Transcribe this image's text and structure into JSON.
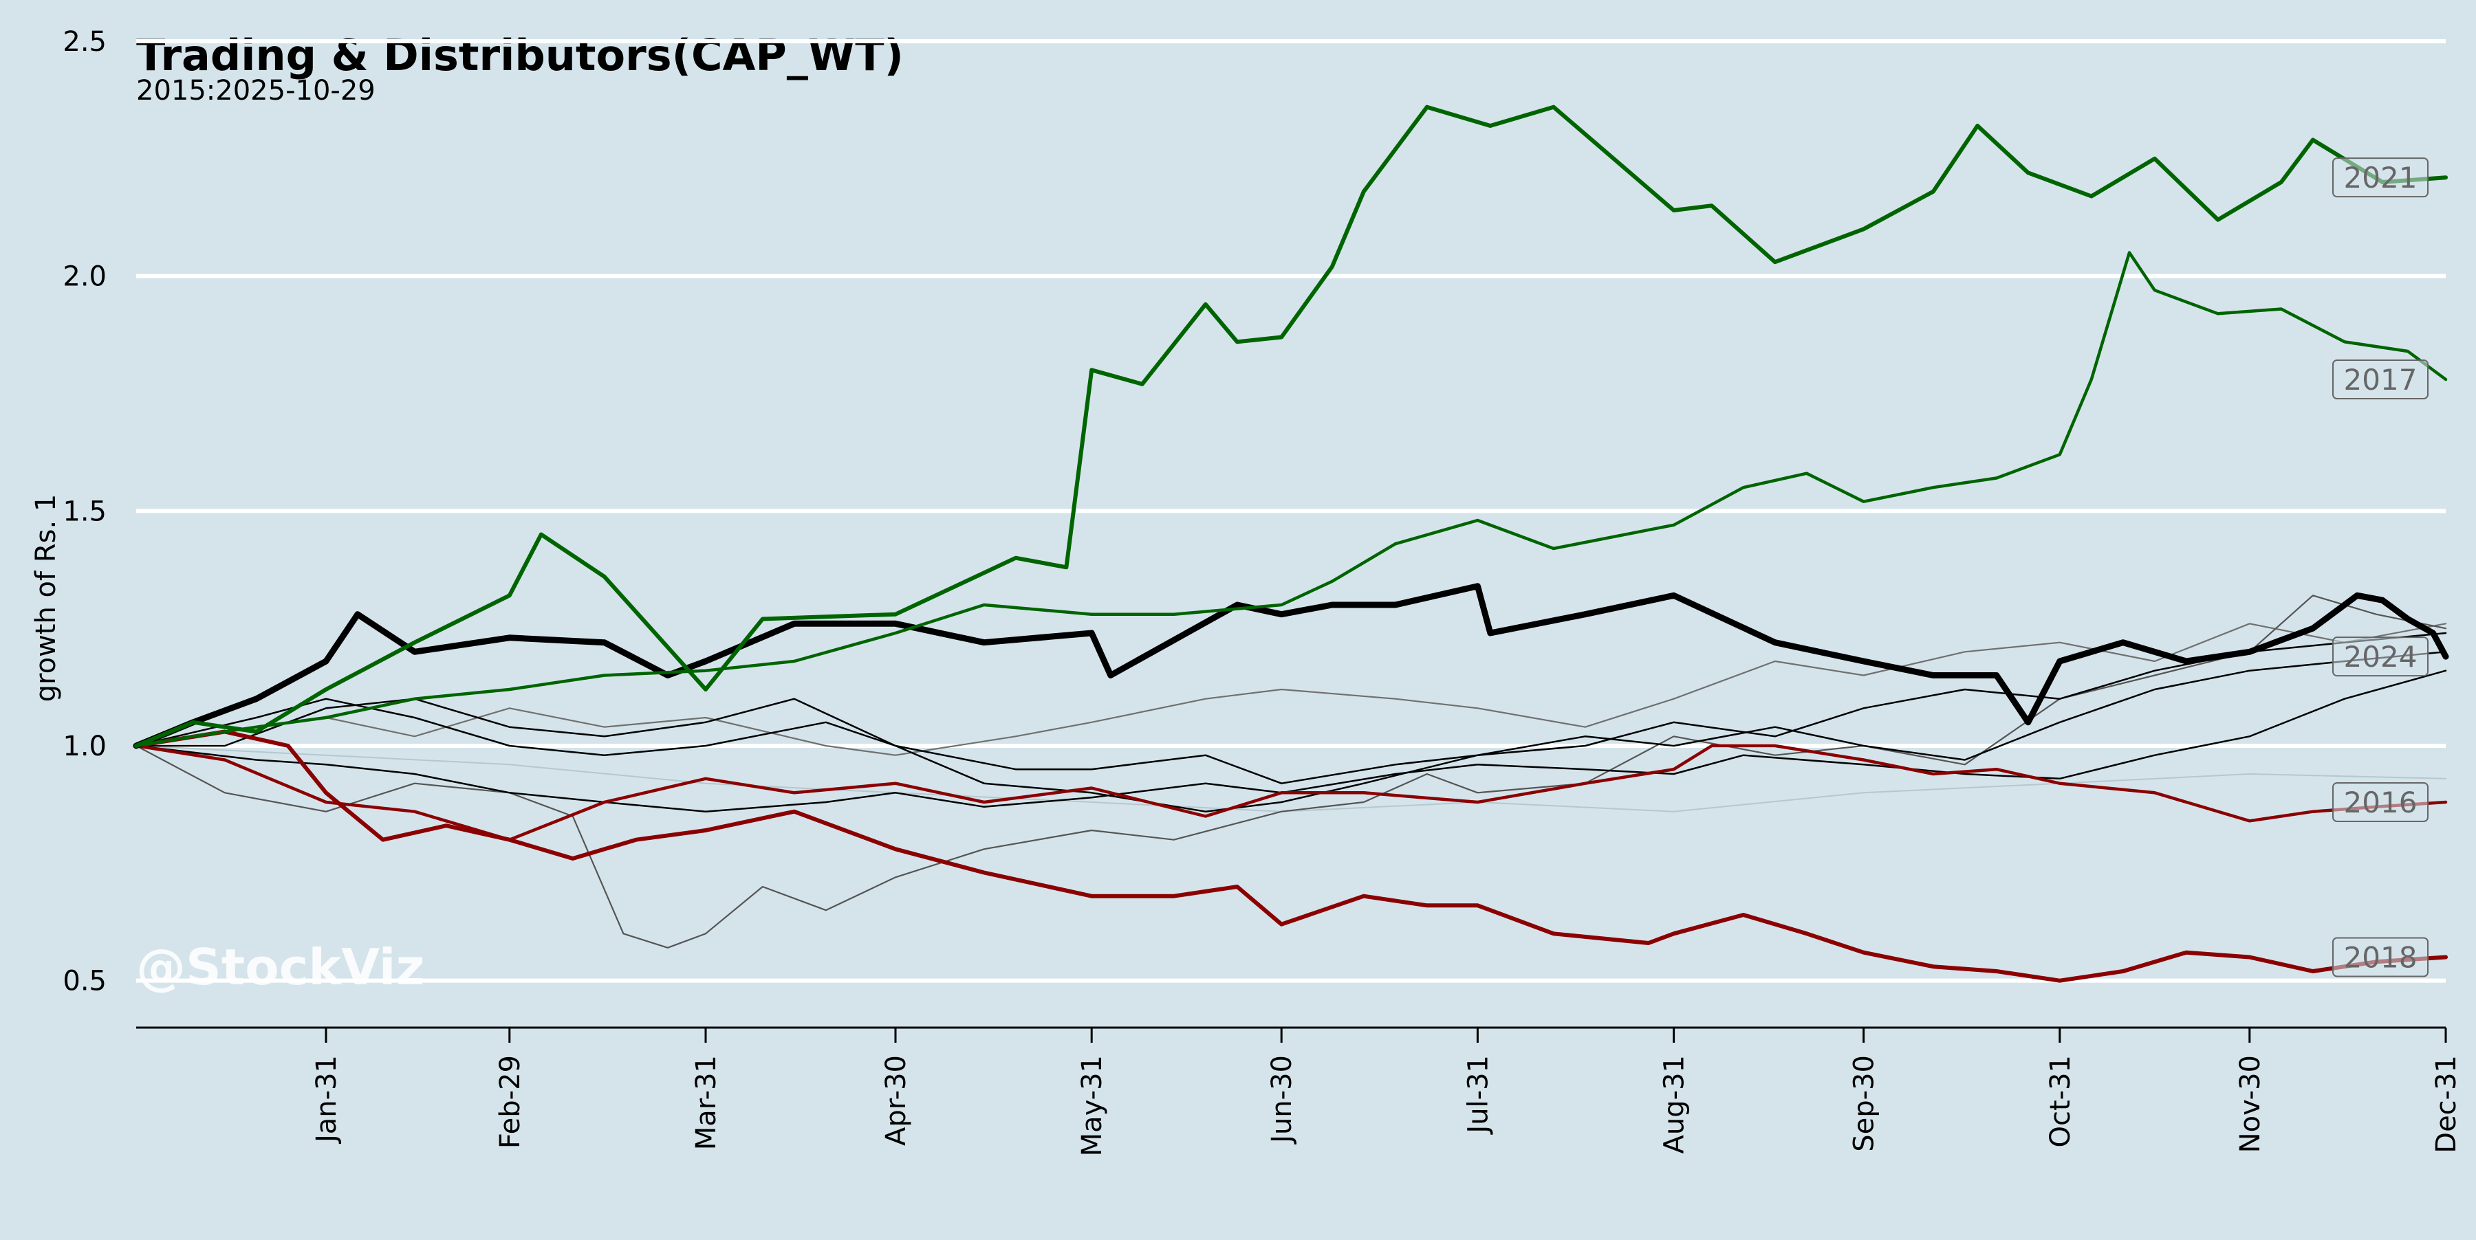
{
  "chart_data": {
    "type": "line",
    "title": "Trading & Distributors(CAP_WT)",
    "subtitle": "2015:2025-10-29",
    "ylabel": "growth of Rs. 1",
    "xlabel": "",
    "watermark": "@StockViz",
    "ylim": [
      0.4,
      2.5
    ],
    "xlim": [
      1,
      366
    ],
    "yticks": [
      0.5,
      1.0,
      1.5,
      2.0,
      2.5
    ],
    "ytick_labels": [
      "0.5",
      "1.0",
      "1.5",
      "2.0",
      "2.5"
    ],
    "xticks": [
      31,
      60,
      91,
      121,
      152,
      182,
      213,
      244,
      274,
      305,
      335,
      366
    ],
    "xtick_labels": [
      "Jan-31",
      "Feb-29",
      "Mar-31",
      "Apr-30",
      "May-31",
      "Jun-30",
      "Jul-31",
      "Aug-31",
      "Sep-30",
      "Oct-31",
      "Nov-30",
      "Dec-31"
    ],
    "grid": "horizontal",
    "legend": "none",
    "series": [
      {
        "name": "2021",
        "color": "#006400",
        "width": 6,
        "x": [
          1,
          10,
          20,
          31,
          45,
          60,
          65,
          75,
          91,
          100,
          121,
          140,
          148,
          152,
          160,
          170,
          175,
          182,
          190,
          195,
          205,
          215,
          225,
          244,
          250,
          260,
          274,
          285,
          292,
          300,
          310,
          320,
          330,
          340,
          345,
          356,
          366
        ],
        "y": [
          1.0,
          1.05,
          1.03,
          1.12,
          1.22,
          1.32,
          1.45,
          1.36,
          1.12,
          1.27,
          1.28,
          1.4,
          1.38,
          1.8,
          1.77,
          1.94,
          1.86,
          1.87,
          2.02,
          2.18,
          2.36,
          2.32,
          2.36,
          2.14,
          2.15,
          2.03,
          2.1,
          2.18,
          2.32,
          2.22,
          2.17,
          2.25,
          2.12,
          2.2,
          2.29,
          2.2,
          2.21
        ]
      },
      {
        "name": "2017",
        "color": "#006400",
        "width": 4.5,
        "x": [
          1,
          10,
          20,
          31,
          45,
          60,
          75,
          91,
          105,
          121,
          135,
          152,
          165,
          182,
          190,
          200,
          213,
          225,
          244,
          255,
          265,
          274,
          285,
          295,
          305,
          310,
          316,
          320,
          330,
          340,
          350,
          360,
          366
        ],
        "y": [
          1.0,
          1.02,
          1.04,
          1.06,
          1.1,
          1.12,
          1.15,
          1.16,
          1.18,
          1.24,
          1.3,
          1.28,
          1.28,
          1.3,
          1.35,
          1.43,
          1.48,
          1.42,
          1.47,
          1.55,
          1.58,
          1.52,
          1.55,
          1.57,
          1.62,
          1.78,
          2.05,
          1.97,
          1.92,
          1.93,
          1.86,
          1.84,
          1.78
        ]
      },
      {
        "name": "2024",
        "color": "#000000",
        "width": 9,
        "x": [
          1,
          10,
          20,
          31,
          36,
          45,
          60,
          75,
          85,
          91,
          105,
          121,
          135,
          152,
          155,
          175,
          182,
          190,
          200,
          213,
          215,
          230,
          244,
          260,
          274,
          285,
          295,
          300,
          305,
          315,
          325,
          335,
          345,
          352,
          356,
          360,
          364,
          366
        ],
        "y": [
          1.0,
          1.05,
          1.1,
          1.18,
          1.28,
          1.2,
          1.23,
          1.22,
          1.15,
          1.18,
          1.26,
          1.26,
          1.22,
          1.24,
          1.15,
          1.3,
          1.28,
          1.3,
          1.3,
          1.34,
          1.24,
          1.28,
          1.32,
          1.22,
          1.18,
          1.15,
          1.15,
          1.05,
          1.18,
          1.22,
          1.18,
          1.2,
          1.25,
          1.32,
          1.31,
          1.27,
          1.24,
          1.19
        ]
      },
      {
        "name": "2016",
        "color": "#8b0000",
        "width": 4.5,
        "x": [
          1,
          15,
          31,
          45,
          60,
          75,
          91,
          105,
          121,
          135,
          152,
          170,
          182,
          195,
          213,
          230,
          244,
          250,
          260,
          274,
          285,
          295,
          305,
          320,
          335,
          345,
          355,
          366
        ],
        "y": [
          1.0,
          0.97,
          0.88,
          0.86,
          0.8,
          0.88,
          0.93,
          0.9,
          0.92,
          0.88,
          0.91,
          0.85,
          0.9,
          0.9,
          0.88,
          0.92,
          0.95,
          1.0,
          1.0,
          0.97,
          0.94,
          0.95,
          0.92,
          0.9,
          0.84,
          0.86,
          0.87,
          0.88
        ]
      },
      {
        "name": "2018",
        "color": "#8b0000",
        "width": 6,
        "x": [
          1,
          15,
          25,
          31,
          40,
          50,
          60,
          70,
          80,
          91,
          105,
          121,
          135,
          152,
          165,
          175,
          182,
          195,
          205,
          213,
          225,
          240,
          244,
          255,
          265,
          274,
          285,
          295,
          305,
          315,
          325,
          335,
          345,
          355,
          366
        ],
        "y": [
          1.0,
          1.03,
          1.0,
          0.9,
          0.8,
          0.83,
          0.8,
          0.76,
          0.8,
          0.82,
          0.86,
          0.78,
          0.73,
          0.68,
          0.68,
          0.7,
          0.62,
          0.68,
          0.66,
          0.66,
          0.6,
          0.58,
          0.6,
          0.64,
          0.6,
          0.56,
          0.53,
          0.52,
          0.5,
          0.52,
          0.56,
          0.55,
          0.52,
          0.54,
          0.55
        ]
      },
      {
        "name": "",
        "color": "#000000",
        "width": 2.5,
        "x": [
          1,
          20,
          31,
          45,
          60,
          75,
          91,
          110,
          121,
          140,
          152,
          170,
          182,
          200,
          213,
          230,
          244,
          260,
          274,
          290,
          305,
          320,
          335,
          350,
          366
        ],
        "y": [
          1.0,
          1.06,
          1.1,
          1.06,
          1.0,
          0.98,
          1.0,
          1.05,
          1.0,
          0.95,
          0.95,
          0.98,
          0.92,
          0.96,
          0.98,
          1.02,
          1.0,
          1.04,
          1.0,
          0.97,
          1.05,
          1.12,
          1.16,
          1.18,
          1.2
        ]
      },
      {
        "name": "",
        "color": "#000000",
        "width": 2.5,
        "x": [
          1,
          20,
          31,
          45,
          60,
          75,
          91,
          110,
          121,
          135,
          152,
          170,
          182,
          200,
          213,
          230,
          244,
          255,
          274,
          290,
          305,
          320,
          335,
          350,
          366
        ],
        "y": [
          1.0,
          0.97,
          0.96,
          0.94,
          0.9,
          0.88,
          0.86,
          0.88,
          0.9,
          0.87,
          0.89,
          0.92,
          0.9,
          0.94,
          0.96,
          0.95,
          0.94,
          0.98,
          0.96,
          0.94,
          0.93,
          0.98,
          1.02,
          1.1,
          1.16
        ]
      },
      {
        "name": "",
        "color": "#000000",
        "width": 2.5,
        "x": [
          1,
          15,
          31,
          45,
          60,
          75,
          91,
          105,
          121,
          135,
          152,
          170,
          182,
          195,
          213,
          230,
          244,
          260,
          274,
          290,
          305,
          320,
          335,
          350,
          366
        ],
        "y": [
          1.0,
          1.0,
          1.08,
          1.1,
          1.04,
          1.02,
          1.05,
          1.1,
          1.0,
          0.92,
          0.9,
          0.86,
          0.88,
          0.92,
          0.98,
          1.0,
          1.05,
          1.02,
          1.08,
          1.12,
          1.1,
          1.16,
          1.2,
          1.22,
          1.24
        ]
      },
      {
        "name": "",
        "color": "#555555",
        "width": 2.2,
        "x": [
          1,
          15,
          31,
          45,
          60,
          70,
          78,
          85,
          91,
          100,
          110,
          121,
          135,
          152,
          165,
          182,
          195,
          205,
          213,
          230,
          244,
          260,
          274,
          290,
          305,
          320,
          335,
          345,
          355,
          366
        ],
        "y": [
          1.0,
          0.9,
          0.86,
          0.92,
          0.9,
          0.85,
          0.6,
          0.57,
          0.6,
          0.7,
          0.65,
          0.72,
          0.78,
          0.82,
          0.8,
          0.86,
          0.88,
          0.94,
          0.9,
          0.92,
          1.02,
          0.98,
          1.0,
          0.96,
          1.1,
          1.15,
          1.2,
          1.32,
          1.28,
          1.25
        ]
      },
      {
        "name": "",
        "color": "#707070",
        "width": 2.2,
        "x": [
          1,
          20,
          31,
          45,
          60,
          75,
          91,
          110,
          121,
          140,
          152,
          170,
          182,
          200,
          213,
          230,
          244,
          260,
          274,
          290,
          305,
          320,
          335,
          350,
          366
        ],
        "y": [
          1.0,
          1.04,
          1.06,
          1.02,
          1.08,
          1.04,
          1.06,
          1.0,
          0.98,
          1.02,
          1.05,
          1.1,
          1.12,
          1.1,
          1.08,
          1.04,
          1.1,
          1.18,
          1.15,
          1.2,
          1.22,
          1.18,
          1.26,
          1.22,
          1.26
        ]
      },
      {
        "name": "",
        "color": "#b5c7cf",
        "width": 2,
        "x": [
          1,
          31,
          60,
          91,
          121,
          152,
          182,
          213,
          244,
          274,
          305,
          335,
          366
        ],
        "y": [
          1.0,
          0.98,
          0.96,
          0.92,
          0.9,
          0.88,
          0.86,
          0.88,
          0.86,
          0.9,
          0.92,
          0.94,
          0.93
        ]
      }
    ]
  }
}
